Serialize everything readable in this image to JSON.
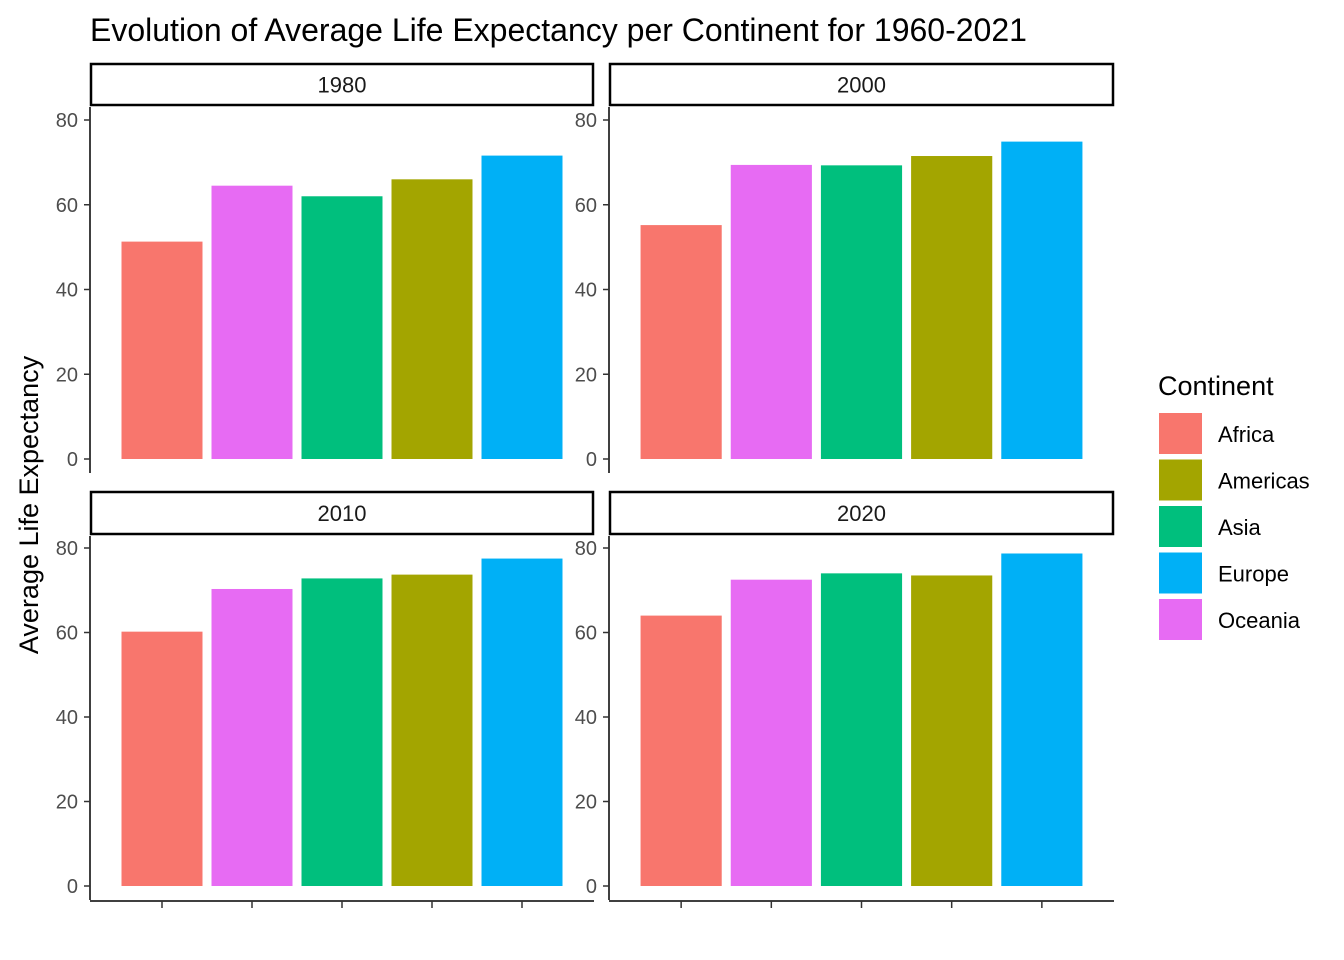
{
  "chart_data": {
    "type": "bar",
    "title": "Evolution of Average Life Expectancy per Continent for 1960-2021",
    "xlabel": "",
    "ylabel": "Average Life Expectancy",
    "ylim": [
      0,
      80
    ],
    "yticks": [
      "0",
      "20",
      "40",
      "60",
      "80"
    ],
    "grid": false,
    "legend": {
      "title": "Continent",
      "position": "right",
      "entries": [
        "Africa",
        "Americas",
        "Asia",
        "Europe",
        "Oceania"
      ]
    },
    "categories": [
      "Africa",
      "Oceania",
      "Asia",
      "Americas",
      "Europe"
    ],
    "colors": {
      "Africa": "#F8766D",
      "Americas": "#A3A500",
      "Asia": "#00BF7D",
      "Europe": "#00B0F6",
      "Oceania": "#E76BF3"
    },
    "facets": [
      {
        "label": "1980",
        "values": [
          51.3,
          64.5,
          62.0,
          66.0,
          71.6
        ]
      },
      {
        "label": "2000",
        "values": [
          55.2,
          69.4,
          69.3,
          71.5,
          74.9
        ]
      },
      {
        "label": "2010",
        "values": [
          60.2,
          70.3,
          72.8,
          73.7,
          77.5
        ]
      },
      {
        "label": "2020",
        "values": [
          64.0,
          72.5,
          74.0,
          73.5,
          78.7
        ]
      }
    ]
  }
}
